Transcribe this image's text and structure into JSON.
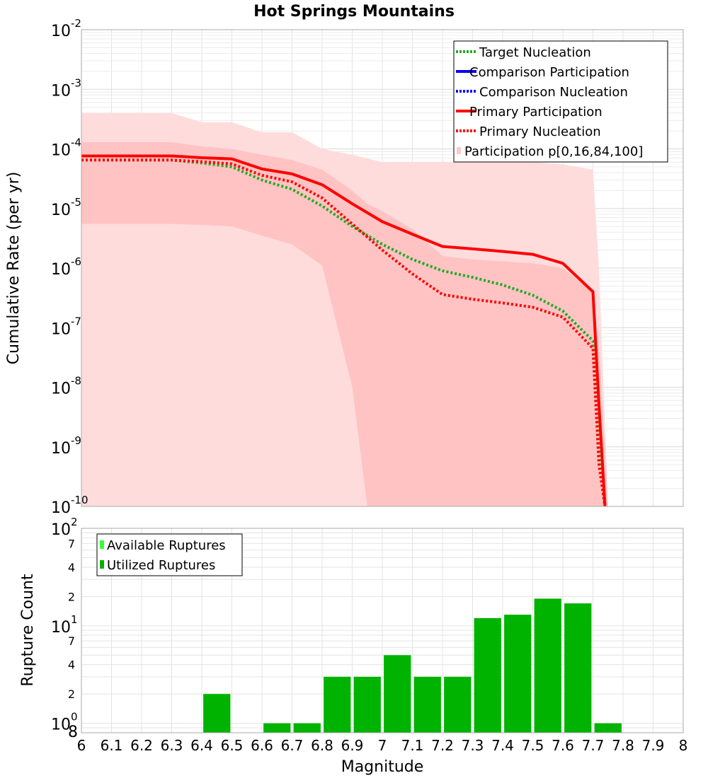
{
  "chart_data": [
    {
      "type": "line",
      "title": "Hot Springs Mountains",
      "xlabel": "",
      "ylabel": "Cumulative Rate (per yr)",
      "yscale": "log",
      "xlim": [
        6,
        8
      ],
      "ylim": [
        1e-10,
        0.01
      ],
      "y_tick_base": "10",
      "y_tick_exponents": [
        "-10",
        "-9",
        "-8",
        "-7",
        "-6",
        "-5",
        "-4",
        "-3",
        "-2"
      ],
      "legend_position": "top-right",
      "legend": [
        "Target Nucleation",
        "Comparison Participation",
        "Comparison Nucleation",
        "Primary Participation",
        "Primary Nucleation",
        "Participation p[0,16,84,100]"
      ],
      "bands": [
        {
          "name": "Participation p[0,16,84,100] (0-100)",
          "color": "#ffdcdc",
          "x": [
            6.0,
            6.1,
            6.2,
            6.3,
            6.4,
            6.5,
            6.6,
            6.7,
            6.8,
            6.9,
            7.0,
            7.1,
            7.2,
            7.3,
            7.4,
            7.5,
            7.6,
            7.7,
            7.72,
            7.75
          ],
          "upper": [
            0.0004,
            0.0004,
            0.0004,
            0.0004,
            0.00028,
            0.00028,
            0.00019,
            0.00019,
            0.0001,
            8e-05,
            6e-05,
            6e-05,
            6e-05,
            6e-05,
            6e-05,
            6e-05,
            5.5e-05,
            4.5e-05,
            1e-06,
            1e-10
          ],
          "lower": [
            1e-10,
            1e-10,
            1e-10,
            1e-10,
            1e-10,
            1e-10,
            1e-10,
            1e-10,
            1e-10,
            1e-10,
            1e-10,
            1e-10,
            1e-10,
            1e-10,
            1e-10,
            1e-10,
            1e-10,
            1e-10,
            1e-10,
            1e-10
          ]
        },
        {
          "name": "Participation p[0,16,84,100] (16-84)",
          "color": "#ffc3c3",
          "x": [
            6.0,
            6.1,
            6.2,
            6.3,
            6.4,
            6.5,
            6.6,
            6.7,
            6.8,
            6.9,
            6.95,
            7.0,
            7.1,
            7.2,
            7.3,
            7.4,
            7.5,
            7.6,
            7.7,
            7.72,
            7.75
          ],
          "upper": [
            0.00013,
            0.00013,
            0.00013,
            0.00013,
            0.00011,
            0.0001,
            8e-05,
            6.5e-05,
            4.5e-05,
            2e-05,
            1.2e-05,
            9e-06,
            4.5e-06,
            1.6e-06,
            1.4e-06,
            1.3e-06,
            1.2e-06,
            1e-06,
            4e-07,
            5e-08,
            1e-10
          ],
          "lower": [
            5.5e-06,
            5.5e-06,
            5.5e-06,
            5.5e-06,
            5.3e-06,
            5e-06,
            3.5e-06,
            2.5e-06,
            1.1e-06,
            1e-08,
            1e-10,
            1e-10,
            1e-10,
            1e-10,
            1e-10,
            1e-10,
            1e-10,
            1e-10,
            1e-10,
            1e-10,
            1e-10
          ]
        }
      ],
      "series": [
        {
          "name": "Target Nucleation",
          "color": "#22aa22",
          "style": "dotted",
          "x": [
            6.0,
            6.1,
            6.2,
            6.3,
            6.4,
            6.5,
            6.6,
            6.7,
            6.8,
            6.9,
            7.0,
            7.1,
            7.2,
            7.3,
            7.4,
            7.5,
            7.6,
            7.7,
            7.72,
            7.74
          ],
          "y": [
            6.5e-05,
            6.5e-05,
            6.5e-05,
            6.5e-05,
            5.8e-05,
            5e-05,
            3e-05,
            2.1e-05,
            1.1e-05,
            5e-06,
            2.5e-06,
            1.4e-06,
            9e-07,
            7e-07,
            5.2e-07,
            3.5e-07,
            1.9e-07,
            6e-08,
            1e-09,
            1e-10
          ]
        },
        {
          "name": "Comparison Participation",
          "color": "#0000ff",
          "style": "solid",
          "x": [],
          "y": []
        },
        {
          "name": "Comparison Nucleation",
          "color": "#0000ff",
          "style": "dotted",
          "x": [],
          "y": []
        },
        {
          "name": "Primary Participation",
          "color": "#ff0000",
          "style": "solid",
          "x": [
            6.0,
            6.1,
            6.2,
            6.3,
            6.4,
            6.5,
            6.6,
            6.7,
            6.8,
            6.9,
            7.0,
            7.1,
            7.2,
            7.3,
            7.4,
            7.5,
            7.6,
            7.7,
            7.72,
            7.74
          ],
          "y": [
            7.6e-05,
            7.6e-05,
            7.6e-05,
            7.6e-05,
            7.1e-05,
            6.8e-05,
            4.6e-05,
            3.8e-05,
            2.5e-05,
            1.2e-05,
            6e-06,
            3.7e-06,
            2.3e-06,
            2.1e-06,
            1.9e-06,
            1.7e-06,
            1.2e-06,
            4e-07,
            5e-09,
            1e-10
          ]
        },
        {
          "name": "Primary Nucleation",
          "color": "#ff0000",
          "style": "dotted",
          "x": [
            6.0,
            6.1,
            6.2,
            6.3,
            6.4,
            6.5,
            6.6,
            6.7,
            6.8,
            6.9,
            7.0,
            7.1,
            7.2,
            7.3,
            7.4,
            7.5,
            7.6,
            7.7,
            7.72,
            7.74
          ],
          "y": [
            6.5e-05,
            6.5e-05,
            6.5e-05,
            6.5e-05,
            6.1e-05,
            5.6e-05,
            3.6e-05,
            2.8e-05,
            1.5e-05,
            5.5e-06,
            2e-06,
            8e-07,
            3.6e-07,
            3e-07,
            2.6e-07,
            2.2e-07,
            1.5e-07,
            4.5e-08,
            5e-10,
            1e-10
          ]
        }
      ]
    },
    {
      "type": "bar",
      "title": "",
      "xlabel": "Magnitude",
      "ylabel": "Rupture Count",
      "yscale": "log",
      "xlim": [
        6,
        8
      ],
      "ylim": [
        0.8,
        100
      ],
      "x_ticks": [
        "6",
        "6.1",
        "6.2",
        "6.3",
        "6.4",
        "6.5",
        "6.6",
        "6.7",
        "6.8",
        "6.9",
        "7",
        "7.1",
        "7.2",
        "7.3",
        "7.4",
        "7.5",
        "7.6",
        "7.7",
        "7.8",
        "7.9",
        "8"
      ],
      "y_tick_base": "10",
      "y_major_exponents": [
        "0",
        "1",
        "2"
      ],
      "y_bottom_label": "8",
      "y_minor_labels": [
        "2",
        "4",
        "7"
      ],
      "legend_position": "top-left",
      "legend": [
        "Available Ruptures",
        "Utilized Ruptures"
      ],
      "series": [
        {
          "name": "Available Ruptures",
          "color": "#33ff33",
          "centers": [],
          "values": []
        },
        {
          "name": "Utilized Ruptures",
          "color": "#00b300",
          "centers": [
            6.45,
            6.65,
            6.75,
            6.85,
            6.95,
            7.05,
            7.15,
            7.25,
            7.35,
            7.45,
            7.55,
            7.65,
            7.75
          ],
          "values": [
            2,
            1,
            1,
            3,
            3,
            5,
            3,
            3,
            12,
            13,
            19,
            17,
            1
          ]
        }
      ]
    }
  ]
}
